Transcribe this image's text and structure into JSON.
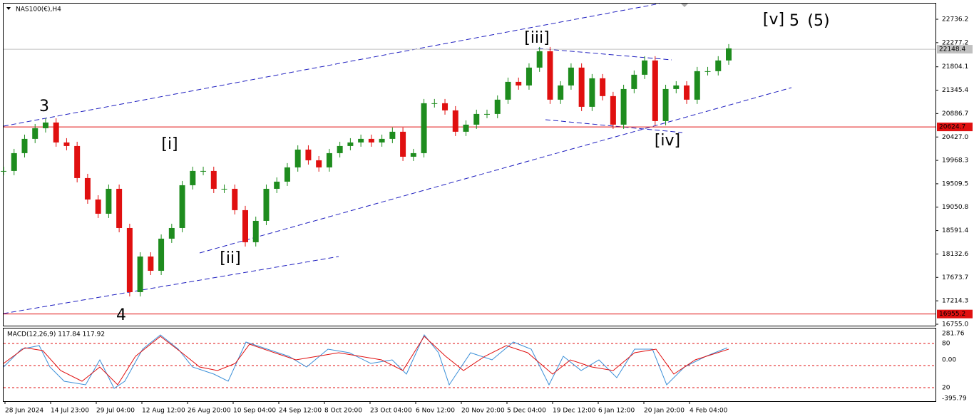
{
  "chart_data": {
    "type": "candlestick",
    "title": "NAS100(€),H4",
    "values": [
      19761,
      20110,
      20390,
      20599,
      20711,
      20320,
      20250,
      19621,
      19201,
      18922,
      19411,
      18642,
      17384,
      18083,
      17803,
      18433,
      18642,
      19481,
      19761,
      19761,
      19411,
      19411,
      18992,
      18363,
      18782,
      19411,
      19551,
      19831,
      20180,
      19970,
      19831,
      20110,
      20250,
      20320,
      20390,
      20320,
      20390,
      20530,
      20040,
      20110,
      21089,
      21089,
      20949,
      20530,
      20669,
      20879,
      20879,
      21159,
      21508,
      21438,
      21788,
      22109,
      21159,
      21438,
      21788,
      21019,
      21578,
      21229,
      20669,
      21368,
      21648,
      21928,
      20739,
      21368,
      21438,
      21159,
      21718,
      21718,
      21928,
      22165
    ],
    "up_color": "#1e8c1e",
    "down_color": "#e01010",
    "ylim": [
      16727,
      23044
    ],
    "yticks": [
      {
        "value": 16755,
        "label": "16755.0"
      },
      17214.3,
      17673.7,
      18132.6,
      18591.4,
      19050.8,
      19509.5,
      19968.3,
      {
        "value": 20427,
        "label": "20427.0"
      },
      20886.7,
      21345.4,
      21804.1,
      22277.2,
      22736.2
    ],
    "levels": [
      {
        "value": 22148.4,
        "color": "#c0c0c0"
      },
      {
        "value": 20624.7,
        "color": "#e01010"
      },
      {
        "value": 16955.2,
        "color": "#e01010"
      }
    ],
    "xticks": [
      "28 Jun 2024",
      "14 Jul 23:00",
      "29 Jul 04:00",
      "12 Aug 12:00",
      "26 Aug 20:00",
      "10 Sep 04:00",
      "24 Sep 12:00",
      "8 Oct 20:00",
      "23 Oct 04:00",
      "6 Nov 12:00",
      "20 Nov 20:00",
      "5 Dec 04:00",
      "19 Dec 12:00",
      "6 Jan 12:00",
      "20 Jan 20:00",
      "4 Feb 04:00"
    ],
    "annotations": [
      {
        "text": "3",
        "color": "#1010d0"
      },
      {
        "text": "4",
        "color": "#1010d0"
      },
      {
        "text": "[i]",
        "color": "#1a8a1a"
      },
      {
        "text": "[ii]",
        "color": "#1a8a1a"
      },
      {
        "text": "[iii]",
        "color": "#1a8a1a"
      },
      {
        "text": "[iv]",
        "color": "#1a8a1a"
      },
      {
        "text": "[v]",
        "color": "#1a8a1a"
      },
      {
        "text": "5",
        "color": "#1010d0"
      },
      {
        "text": "(5)",
        "color": "#e01010"
      }
    ],
    "macd": {
      "header": "MACD(12,26,9) 117.84 117.92",
      "axis_labels": [
        "281.76",
        "80",
        "0.00",
        "20",
        "-395.79"
      ]
    }
  }
}
